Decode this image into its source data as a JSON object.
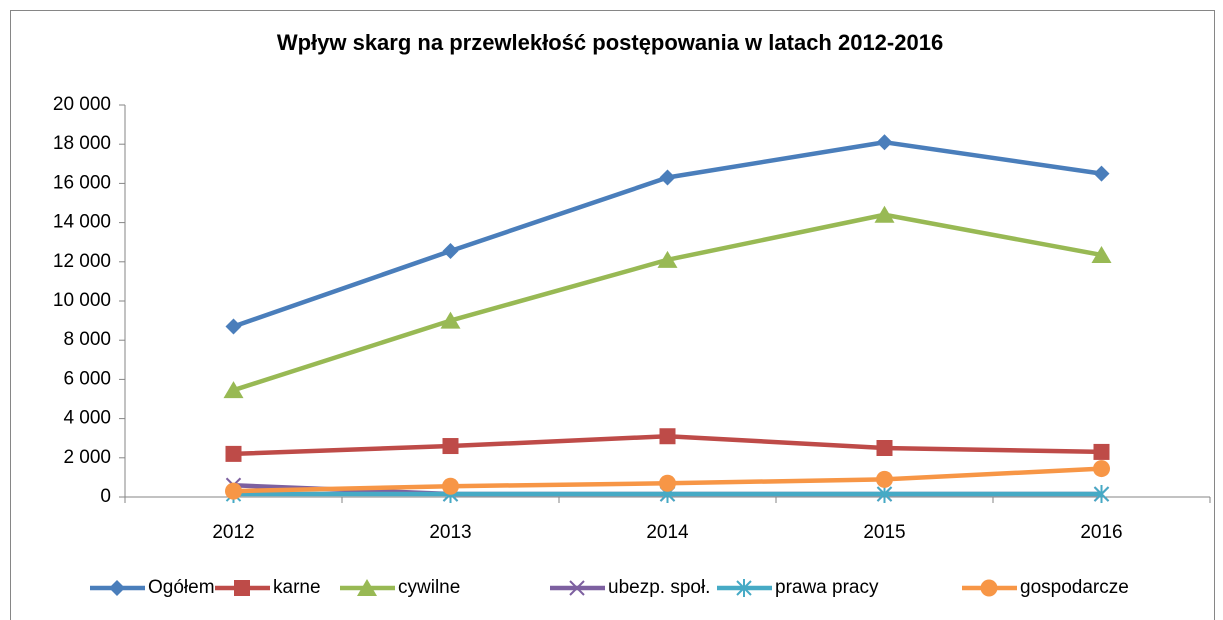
{
  "chart_data": {
    "type": "line",
    "title": "Wpływ skarg na przewlekłość postępowania w latach 2012-2016",
    "categories": [
      "2012",
      "2013",
      "2014",
      "2015",
      "2016"
    ],
    "series": [
      {
        "name": "Ogółem",
        "color": "#4a7ebb",
        "marker": "diamond",
        "values": [
          8700,
          12550,
          16300,
          18100,
          16500
        ]
      },
      {
        "name": "karne",
        "color": "#be4b48",
        "marker": "square",
        "values": [
          2200,
          2600,
          3100,
          2500,
          2300
        ]
      },
      {
        "name": "cywilne",
        "color": "#98b954",
        "marker": "triangle",
        "values": [
          5450,
          9000,
          12100,
          14400,
          12350
        ]
      },
      {
        "name": "ubezp. społ.",
        "color": "#7d60a0",
        "marker": "x",
        "values": [
          600,
          150,
          150,
          150,
          150
        ]
      },
      {
        "name": "prawa pracy",
        "color": "#46aac5",
        "marker": "star",
        "values": [
          150,
          150,
          150,
          150,
          150
        ]
      },
      {
        "name": "gospodarcze",
        "color": "#f79646",
        "marker": "circle",
        "values": [
          300,
          550,
          700,
          900,
          1450
        ]
      }
    ],
    "ylim": [
      0,
      20000
    ],
    "yticks": [
      0,
      {
        "value": 2000,
        "label": "2 000"
      },
      {
        "value": 4000,
        "label": "4 000"
      },
      {
        "value": 6000,
        "label": "6 000"
      },
      {
        "value": 8000,
        "label": "8 000"
      },
      {
        "value": 10000,
        "label": "10 000"
      },
      {
        "value": 12000,
        "label": "12 000"
      },
      {
        "value": 14000,
        "label": "14 000"
      },
      {
        "value": 16000,
        "label": "16 000"
      },
      {
        "value": 18000,
        "label": "18 000"
      },
      {
        "value": 20000,
        "label": "20 000"
      }
    ],
    "grid": false,
    "legend": "bottom"
  }
}
